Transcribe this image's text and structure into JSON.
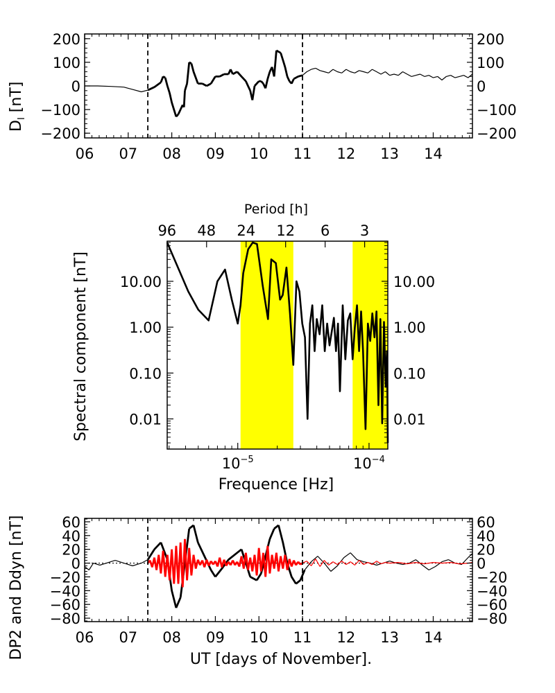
{
  "chart_data": [
    {
      "id": "top",
      "type": "line",
      "ylabel": "D",
      "ylabel_subscript": "I",
      "ylabel_unit": "[nT]",
      "x_ticks": [
        "06",
        "07",
        "08",
        "09",
        "10",
        "11",
        "12",
        "13",
        "14"
      ],
      "xlim": [
        6,
        14.9
      ],
      "ylim": [
        -220,
        220
      ],
      "y_ticks": [
        200,
        100,
        0,
        -100,
        -200
      ],
      "y_tick_labels": [
        "200",
        "100",
        "0",
        "−100",
        "−200"
      ],
      "event_markers": [
        7.45,
        11.0
      ],
      "bold_range": [
        7.45,
        11.0
      ],
      "series": [
        {
          "x": [
            6.0,
            6.3,
            6.6,
            6.9,
            7.1,
            7.3,
            7.45,
            7.6,
            7.75,
            7.8,
            7.85,
            7.9,
            7.95,
            8.0,
            8.1,
            8.15,
            8.2,
            8.25,
            8.28,
            8.3,
            8.35,
            8.4,
            8.45,
            8.5,
            8.6,
            8.7,
            8.8,
            8.9,
            9.0,
            9.1,
            9.2,
            9.3,
            9.35,
            9.4,
            9.5,
            9.6,
            9.7,
            9.75,
            9.8,
            9.85,
            9.9,
            10.0,
            10.05,
            10.1,
            10.15,
            10.2,
            10.25,
            10.3,
            10.35,
            10.4,
            10.5,
            10.55,
            10.6,
            10.65,
            10.7,
            10.75,
            10.8,
            10.9,
            11.0,
            11.1,
            11.2,
            11.3,
            11.4,
            11.5,
            11.6,
            11.7,
            11.8,
            11.9,
            12.0,
            12.1,
            12.2,
            12.3,
            12.4,
            12.5,
            12.6,
            12.7,
            12.8,
            12.9,
            13.0,
            13.1,
            13.2,
            13.3,
            13.4,
            13.5,
            13.6,
            13.7,
            13.8,
            13.9,
            14.0,
            14.1,
            14.2,
            14.3,
            14.4,
            14.5,
            14.6,
            14.7,
            14.8,
            14.9
          ],
          "y": [
            0,
            0,
            -2,
            -5,
            -15,
            -25,
            -18,
            -5,
            15,
            40,
            35,
            0,
            -30,
            -70,
            -130,
            -120,
            -100,
            -80,
            -90,
            -20,
            10,
            100,
            95,
            60,
            10,
            10,
            0,
            10,
            40,
            40,
            50,
            50,
            70,
            50,
            60,
            40,
            20,
            0,
            -20,
            -60,
            0,
            20,
            20,
            10,
            -10,
            30,
            60,
            80,
            40,
            150,
            140,
            110,
            80,
            40,
            20,
            10,
            30,
            40,
            45,
            60,
            70,
            75,
            65,
            60,
            55,
            70,
            60,
            55,
            70,
            60,
            55,
            65,
            60,
            55,
            70,
            60,
            50,
            60,
            45,
            50,
            45,
            60,
            50,
            40,
            45,
            50,
            40,
            45,
            35,
            40,
            25,
            40,
            45,
            35,
            40,
            45,
            35,
            50
          ]
        }
      ]
    },
    {
      "id": "spectrum",
      "type": "line",
      "title": "Period [h]",
      "xlabel": "Frequence [Hz]",
      "ylabel": "Spectral component [nT]",
      "x_scale": "log",
      "y_scale": "log",
      "xlim": [
        2.9e-06,
        0.000139
      ],
      "ylim": [
        0.0022,
        75
      ],
      "x_tick_labels": [
        "10−5",
        "10−4"
      ],
      "x_tick_values": [
        1e-05,
        0.0001
      ],
      "y_tick_labels": [
        "10.00",
        "1.00",
        "0.10",
        "0.01"
      ],
      "y_tick_values": [
        10,
        1,
        0.1,
        0.01
      ],
      "period_ticks_h": [
        "96",
        "48",
        "24",
        "12",
        "6",
        "3"
      ],
      "highlight_bands_hz": [
        [
          1.05e-05,
          2.65e-05
        ],
        [
          7.5e-05,
          0.000139
        ]
      ],
      "highlight_color": "#ffff00",
      "series": [
        {
          "x": [
            2.9e-06,
            3.5e-06,
            4.2e-06,
            5e-06,
            6e-06,
            7e-06,
            8e-06,
            9e-06,
            1e-05,
            1.05e-05,
            1.1e-05,
            1.2e-05,
            1.3e-05,
            1.4e-05,
            1.55e-05,
            1.7e-05,
            1.8e-05,
            1.95e-05,
            2.1e-05,
            2.2e-05,
            2.35e-05,
            2.5e-05,
            2.65e-05,
            2.8e-05,
            2.95e-05,
            3.1e-05,
            3.25e-05,
            3.4e-05,
            3.55e-05,
            3.7e-05,
            3.85e-05,
            4e-05,
            4.2e-05,
            4.4e-05,
            4.6e-05,
            4.8e-05,
            5e-05,
            5.2e-05,
            5.4e-05,
            5.6e-05,
            5.8e-05,
            6e-05,
            6.3e-05,
            6.6e-05,
            6.9e-05,
            7.2e-05,
            7.5e-05,
            7.8e-05,
            8.1e-05,
            8.4e-05,
            8.7e-05,
            9e-05,
            9.4e-05,
            9.8e-05,
            0.000102,
            0.000106,
            0.00011,
            0.000114,
            0.000118,
            0.000122,
            0.000126,
            0.00013,
            0.000134,
            0.000137,
            0.000139
          ],
          "y": [
            70,
            20,
            6,
            2.4,
            1.4,
            10,
            18,
            4,
            1.2,
            3,
            15,
            50,
            70,
            65,
            8,
            1.5,
            30,
            25,
            4,
            5,
            20,
            2,
            0.15,
            10,
            6,
            1.2,
            0.6,
            0.01,
            1.2,
            3,
            0.3,
            1.5,
            0.7,
            3,
            0.3,
            1.2,
            0.4,
            0.8,
            1.6,
            0.3,
            1.2,
            0.04,
            3,
            0.2,
            1.4,
            2,
            0.2,
            1,
            3,
            0.3,
            2.2,
            0.3,
            0.006,
            1.2,
            0.5,
            2,
            0.6,
            2.2,
            0.02,
            1.5,
            0.008,
            1.3,
            0.05,
            0.3,
            0.003
          ]
        }
      ]
    },
    {
      "id": "bottom",
      "type": "line",
      "xlabel": "UT [days of November].",
      "ylabel": "DP2 and Ddyn [nT]",
      "x_ticks": [
        "06",
        "07",
        "08",
        "09",
        "10",
        "11",
        "12",
        "13",
        "14"
      ],
      "xlim": [
        6,
        14.9
      ],
      "ylim": [
        -85,
        65
      ],
      "y_ticks": [
        60,
        40,
        20,
        0,
        -20,
        -40,
        -60,
        -80
      ],
      "y_tick_labels": [
        "60",
        "40",
        "20",
        "0",
        "−20",
        "−40",
        "−60",
        "−80"
      ],
      "event_markers": [
        7.45,
        11.0
      ],
      "zero_line": "dotted",
      "bold_range": [
        7.45,
        11.0
      ],
      "series_colors": [
        "#000000",
        "#ff0000"
      ],
      "series": [
        {
          "x": [
            6.0,
            6.1,
            6.2,
            6.35,
            6.5,
            6.7,
            6.9,
            7.1,
            7.3,
            7.45,
            7.6,
            7.75,
            7.9,
            8.0,
            8.1,
            8.2,
            8.3,
            8.4,
            8.5,
            8.6,
            8.75,
            8.9,
            9.0,
            9.15,
            9.3,
            9.5,
            9.6,
            9.7,
            9.8,
            9.95,
            10.05,
            10.15,
            10.25,
            10.35,
            10.45,
            10.55,
            10.65,
            10.75,
            10.85,
            10.95,
            11.05,
            11.2,
            11.35,
            11.5,
            11.65,
            11.8,
            11.95,
            12.1,
            12.25,
            12.4,
            12.55,
            12.7,
            12.85,
            13.0,
            13.15,
            13.3,
            13.45,
            13.6,
            13.75,
            13.9,
            14.05,
            14.2,
            14.35,
            14.5,
            14.65,
            14.8,
            14.9
          ],
          "y": [
            -5,
            -10,
            0,
            -3,
            0,
            4,
            0,
            -4,
            0,
            5,
            20,
            30,
            5,
            -40,
            -65,
            -50,
            0,
            50,
            55,
            30,
            10,
            -10,
            -20,
            -8,
            5,
            15,
            20,
            0,
            -20,
            -25,
            -15,
            10,
            35,
            50,
            55,
            30,
            0,
            -20,
            -30,
            -25,
            -10,
            2,
            10,
            0,
            -12,
            -4,
            8,
            15,
            5,
            2,
            0,
            -3,
            0,
            3,
            0,
            -2,
            0,
            5,
            -3,
            -10,
            -5,
            2,
            5,
            0,
            -2,
            8,
            14
          ]
        },
        {
          "x": [
            7.45,
            7.5,
            7.55,
            7.6,
            7.65,
            7.7,
            7.75,
            7.8,
            7.85,
            7.9,
            7.95,
            8.0,
            8.05,
            8.1,
            8.15,
            8.2,
            8.25,
            8.3,
            8.35,
            8.4,
            8.45,
            8.5,
            8.55,
            8.6,
            8.65,
            8.7,
            8.75,
            8.8,
            8.85,
            8.9,
            8.95,
            9.0,
            9.05,
            9.1,
            9.15,
            9.2,
            9.25,
            9.3,
            9.35,
            9.4,
            9.45,
            9.5,
            9.55,
            9.6,
            9.65,
            9.7,
            9.75,
            9.8,
            9.85,
            9.9,
            9.95,
            10.0,
            10.05,
            10.1,
            10.15,
            10.2,
            10.25,
            10.3,
            10.35,
            10.4,
            10.45,
            10.5,
            10.55,
            10.6,
            10.65,
            10.7,
            10.75,
            10.8,
            10.85,
            10.9,
            10.95,
            11.0,
            11.1,
            11.2,
            11.3,
            11.4,
            11.5,
            11.6,
            11.7,
            11.8,
            11.9,
            12.0,
            12.1,
            12.2,
            12.3,
            12.4,
            12.5,
            12.6,
            12.7,
            12.8,
            12.9,
            13.0,
            13.2,
            13.4,
            13.6,
            13.8,
            14.0,
            14.2,
            14.4,
            14.6,
            14.8,
            14.9
          ],
          "y": [
            0,
            4,
            -6,
            8,
            -10,
            12,
            -15,
            18,
            -20,
            12,
            -25,
            20,
            -30,
            25,
            -30,
            30,
            -35,
            35,
            -25,
            22,
            -18,
            12,
            -8,
            5,
            -3,
            4,
            -6,
            5,
            -4,
            3,
            -2,
            3,
            -5,
            8,
            -6,
            5,
            -4,
            2,
            -3,
            4,
            -3,
            2,
            -5,
            10,
            -8,
            15,
            -10,
            8,
            -12,
            12,
            -18,
            22,
            -12,
            15,
            -20,
            25,
            -15,
            12,
            -8,
            15,
            -12,
            10,
            -8,
            12,
            -10,
            6,
            -5,
            4,
            -3,
            2,
            -2,
            0,
            3,
            -4,
            6,
            -5,
            4,
            -3,
            2,
            -2,
            3,
            -2,
            2,
            -3,
            4,
            -2,
            1,
            -2,
            3,
            -1,
            1,
            0,
            1,
            -1,
            1,
            -1,
            1,
            0,
            1,
            -1,
            0,
            1
          ]
        }
      ]
    }
  ]
}
